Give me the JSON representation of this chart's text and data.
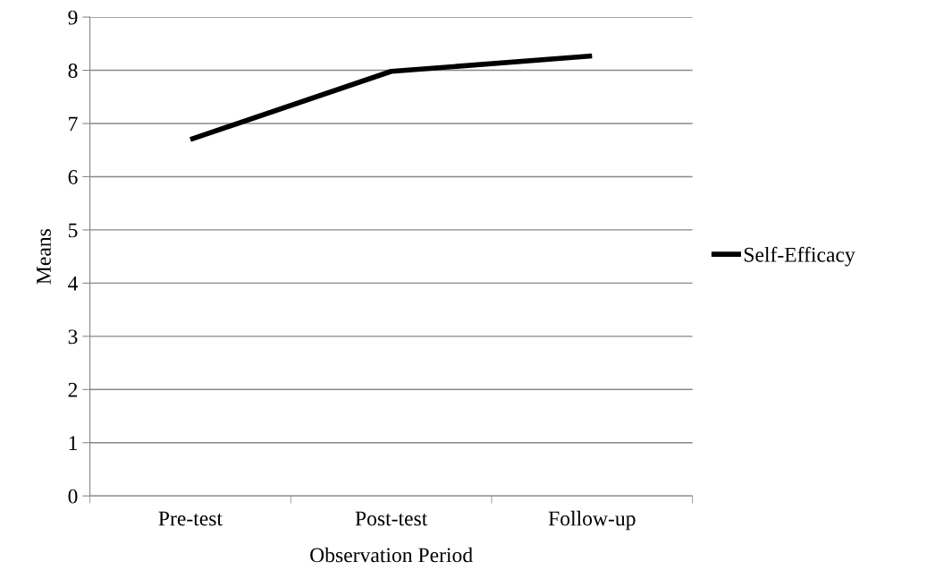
{
  "chart_data": {
    "type": "line",
    "xlabel": "Observation Period",
    "ylabel": "Means",
    "categories": [
      "Pre-test",
      "Post-test",
      "Follow-up"
    ],
    "series": [
      {
        "name": "Self-Efficacy",
        "color": "#000000",
        "values": [
          6.7,
          7.98,
          8.27
        ]
      }
    ],
    "ylim": [
      0,
      9
    ],
    "yticks": [
      0,
      1,
      2,
      3,
      4,
      5,
      6,
      7,
      8,
      9
    ],
    "grid": "y",
    "legend": "right",
    "marker": "none",
    "line_style": "solid"
  }
}
